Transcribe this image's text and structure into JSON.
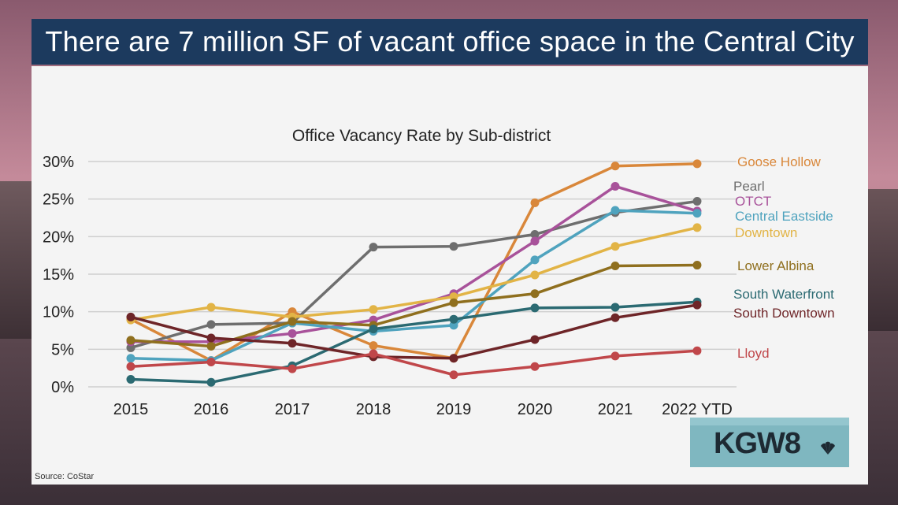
{
  "header": {
    "title": "There are 7 million SF of vacant office space in the Central City"
  },
  "source": "Source: CoStar",
  "logo": {
    "text": "KGW8",
    "icon": "nbc-peacock-icon"
  },
  "chart_data": {
    "type": "line",
    "title": "Office Vacancy Rate by Sub-district",
    "xlabel": "",
    "ylabel": "",
    "categories": [
      "2015",
      "2016",
      "2017",
      "2018",
      "2019",
      "2020",
      "2021",
      "2022 YTD"
    ],
    "ylim": [
      0,
      30
    ],
    "yticks": [
      "0%",
      "5%",
      "10%",
      "15%",
      "20%",
      "25%",
      "30%"
    ],
    "grid": true,
    "legend_placement": "right, labels at line ends",
    "series": [
      {
        "name": "Goose Hollow",
        "color": "#d9873a",
        "values": [
          9.0,
          3.5,
          10.0,
          5.5,
          3.8,
          24.5,
          29.4,
          29.7
        ]
      },
      {
        "name": "Pearl",
        "color": "#6e6e6e",
        "values": [
          5.2,
          8.3,
          8.5,
          18.6,
          18.7,
          20.3,
          23.2,
          24.7
        ]
      },
      {
        "name": "OTCT",
        "color": "#a8529a",
        "values": [
          6.0,
          6.0,
          7.1,
          8.9,
          12.4,
          19.4,
          26.7,
          23.4
        ]
      },
      {
        "name": "Central Eastside",
        "color": "#4fa3be",
        "values": [
          3.8,
          3.5,
          8.5,
          7.4,
          8.2,
          16.9,
          23.5,
          23.1
        ]
      },
      {
        "name": "Downtown",
        "color": "#e2b446",
        "values": [
          8.9,
          10.6,
          9.3,
          10.3,
          12.0,
          14.9,
          18.7,
          21.2
        ]
      },
      {
        "name": "Lower Albina",
        "color": "#8f6f1e",
        "values": [
          6.2,
          5.4,
          8.7,
          8.2,
          11.2,
          12.4,
          16.1,
          16.2
        ]
      },
      {
        "name": "South Waterfront",
        "color": "#2b6a72",
        "values": [
          1.0,
          0.6,
          2.8,
          7.7,
          9.0,
          10.5,
          10.6,
          11.3
        ]
      },
      {
        "name": "South Downtown",
        "color": "#6e2528",
        "values": [
          9.3,
          6.5,
          5.8,
          4.0,
          3.8,
          6.3,
          9.2,
          10.9
        ]
      },
      {
        "name": "Lloyd",
        "color": "#c0474a",
        "values": [
          2.7,
          3.3,
          2.4,
          4.4,
          1.6,
          2.7,
          4.1,
          4.8
        ]
      }
    ]
  }
}
